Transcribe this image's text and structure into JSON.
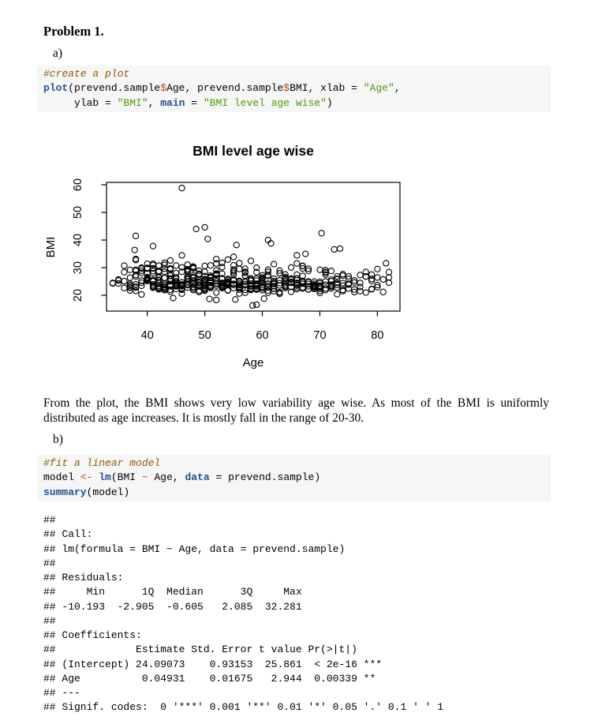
{
  "colors": {
    "keyword": "#24508f",
    "string": "#4e9a06",
    "comment": "#8f5902",
    "operator": "#b8491f",
    "code_background": "#f6f6f6",
    "plot_ink": "#000000"
  },
  "heading": "Problem 1.",
  "item_a": "a)",
  "item_b": "b)",
  "code_a": {
    "lines": [
      [
        [
          "co",
          "#create a plot"
        ]
      ],
      [
        [
          "kw",
          "plot"
        ],
        [
          "pl",
          "(prevend.sample"
        ],
        [
          "op",
          "$"
        ],
        [
          "pl",
          "Age, prevend.sample"
        ],
        [
          "op",
          "$"
        ],
        [
          "pl",
          "BMI, xlab = "
        ],
        [
          "st",
          "\"Age\""
        ],
        [
          "pl",
          ","
        ]
      ],
      [
        [
          "pl",
          "     ylab = "
        ],
        [
          "st",
          "\"BMI\""
        ],
        [
          "pl",
          ", "
        ],
        [
          "kw",
          "main"
        ],
        [
          "pl",
          " = "
        ],
        [
          "st",
          "\"BMI level age wise\""
        ],
        [
          "pl",
          ")"
        ]
      ]
    ]
  },
  "paragraph": "From the plot, the BMI shows very low variability age wise. As most of the BMI is uniformly distributed as age increases. It is mostly fall in the range of 20-30.",
  "code_b": {
    "lines": [
      [
        [
          "co",
          "#fit a linear model"
        ]
      ],
      [
        [
          "pl",
          "model "
        ],
        [
          "op",
          "<-"
        ],
        [
          "pl",
          " "
        ],
        [
          "kw",
          "lm"
        ],
        [
          "pl",
          "(BMI "
        ],
        [
          "op",
          "~"
        ],
        [
          "pl",
          " Age, "
        ],
        [
          "kw",
          "data"
        ],
        [
          "pl",
          " = prevend.sample)"
        ]
      ],
      [
        [
          "kw",
          "summary"
        ],
        [
          "pl",
          "(model)"
        ]
      ]
    ]
  },
  "output_lines": [
    "##",
    "## Call:",
    "## lm(formula = BMI ~ Age, data = prevend.sample)",
    "##",
    "## Residuals:",
    "##     Min      1Q  Median      3Q     Max",
    "## -10.193  -2.905  -0.605   2.085  32.281",
    "##",
    "## Coefficients:",
    "##             Estimate Std. Error t value Pr(>|t|)",
    "## (Intercept) 24.09073    0.93153  25.861  < 2e-16 ***",
    "## Age          0.04931    0.01675   2.944  0.00339 **",
    "## ---",
    "## Signif. codes:  0 '***' 0.001 '**' 0.01 '*' 0.05 '.' 0.1 ' ' 1"
  ],
  "chart_data": {
    "type": "scatter",
    "title": "BMI level age wise",
    "xlabel": "Age",
    "ylabel": "BMI",
    "x_ticks": [
      40,
      50,
      60,
      70,
      80
    ],
    "y_ticks": [
      20,
      30,
      40,
      50,
      60
    ],
    "xlim": [
      32.9,
      83.7
    ],
    "ylim": [
      14.3,
      60.4
    ],
    "grid": false,
    "point_style": "open-circle",
    "n_points_approx": 500,
    "outliers": [
      [
        46,
        58.8
      ],
      [
        38,
        41.5
      ],
      [
        37.8,
        36.4
      ],
      [
        41,
        37.8
      ],
      [
        48.5,
        44.0
      ],
      [
        50,
        44.6
      ],
      [
        50.5,
        40.4
      ],
      [
        55.5,
        38.2
      ],
      [
        61,
        40.0
      ],
      [
        61.5,
        38.8
      ],
      [
        70.3,
        42.5
      ],
      [
        72.5,
        36.6
      ],
      [
        73.5,
        36.9
      ],
      [
        67.5,
        35.0
      ],
      [
        66,
        34.5
      ],
      [
        58.3,
        16.3
      ],
      [
        59,
        16.6
      ],
      [
        52,
        18.3
      ],
      [
        55.3,
        18.5
      ],
      [
        60.3,
        18.8
      ],
      [
        50.8,
        18.7
      ],
      [
        44.5,
        19.0
      ],
      [
        81.5,
        31.6
      ],
      [
        82,
        26.5
      ],
      [
        80,
        29.5
      ],
      [
        79,
        27.5
      ],
      [
        78,
        26.8
      ]
    ],
    "cloud": {
      "seed": 7,
      "age_min": 34,
      "age_max": 82,
      "bmi_base": 20.2,
      "counts_by_age": [
        2,
        3,
        4,
        8,
        10,
        8,
        12,
        12,
        14,
        13,
        14,
        13,
        13,
        15,
        16,
        14,
        15,
        13,
        14,
        13,
        14,
        13,
        12,
        12,
        12,
        11,
        12,
        11,
        10,
        10,
        10,
        10,
        10,
        10,
        9,
        9,
        10,
        8,
        8,
        7,
        6,
        5,
        4,
        4,
        3,
        4,
        3,
        2,
        2
      ]
    }
  }
}
